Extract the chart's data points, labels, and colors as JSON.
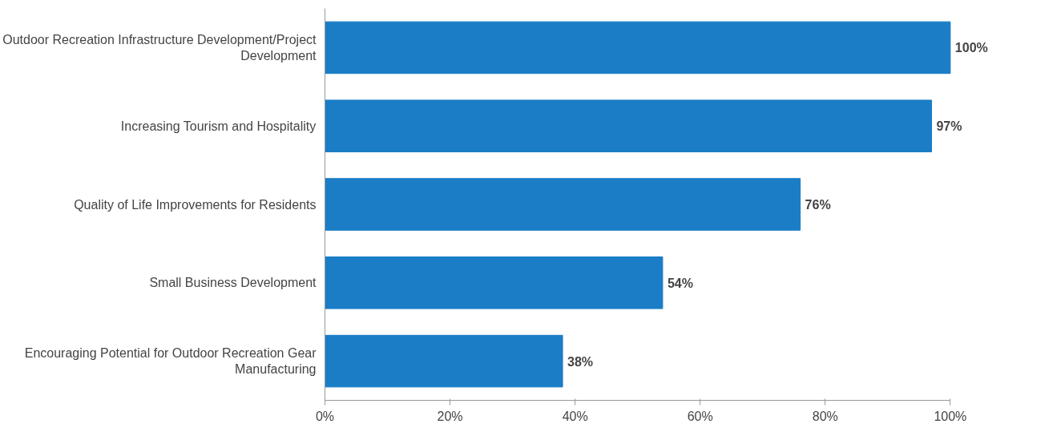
{
  "chart_data": {
    "type": "bar",
    "orientation": "horizontal",
    "categories": [
      "Outdoor Recreation Infrastructure Development/Project Development",
      "Increasing Tourism and Hospitality",
      "Quality of Life Improvements for Residents",
      "Small Business Development",
      "Encouraging Potential for Outdoor Recreation Gear Manufacturing"
    ],
    "values": [
      100,
      97,
      76,
      54,
      38
    ],
    "value_labels": [
      "100%",
      "97%",
      "76%",
      "54%",
      "38%"
    ],
    "color": "#1a7dc6",
    "xlim": [
      0,
      100
    ],
    "xticks": [
      {
        "value": 0,
        "label": "0%"
      },
      {
        "value": 20,
        "label": "20%"
      },
      {
        "value": 40,
        "label": "40%"
      },
      {
        "value": 60,
        "label": "60%"
      },
      {
        "value": 80,
        "label": "80%"
      },
      {
        "value": 100,
        "label": "100%"
      }
    ],
    "grid": false
  }
}
